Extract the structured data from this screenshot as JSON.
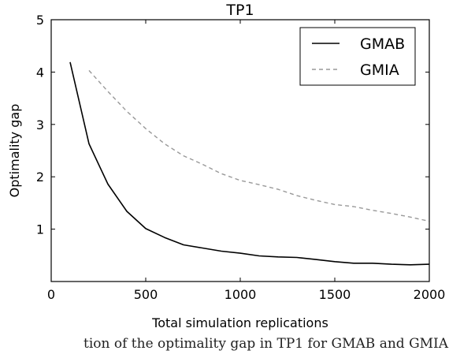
{
  "chart_data": {
    "type": "line",
    "title": "TP1",
    "xlabel": "Total simulation replications",
    "ylabel": "Optimality gap",
    "xlim": [
      0,
      2000
    ],
    "ylim": [
      0,
      5
    ],
    "xticks": [
      0,
      500,
      1000,
      1500,
      2000
    ],
    "yticks": [
      1,
      2,
      3,
      4,
      5
    ],
    "grid": false,
    "legend": "top-right",
    "series": [
      {
        "name": "GMAB",
        "style": "solid",
        "color": "#000000",
        "x": [
          100,
          200,
          300,
          400,
          500,
          600,
          700,
          800,
          900,
          1000,
          1100,
          1200,
          1300,
          1400,
          1500,
          1600,
          1700,
          1800,
          1900,
          2000
        ],
        "y": [
          4.19,
          2.63,
          1.86,
          1.34,
          1.01,
          0.84,
          0.7,
          0.64,
          0.58,
          0.54,
          0.49,
          0.47,
          0.46,
          0.42,
          0.38,
          0.35,
          0.35,
          0.33,
          0.32,
          0.33
        ]
      },
      {
        "name": "GMIA",
        "style": "dashed",
        "color": "#999999",
        "x": [
          200,
          300,
          400,
          500,
          600,
          700,
          800,
          900,
          1000,
          1100,
          1200,
          1300,
          1400,
          1500,
          1600,
          1700,
          1800,
          1900,
          2000
        ],
        "y": [
          4.03,
          3.63,
          3.25,
          2.92,
          2.63,
          2.4,
          2.24,
          2.06,
          1.93,
          1.85,
          1.76,
          1.64,
          1.55,
          1.47,
          1.43,
          1.36,
          1.3,
          1.23,
          1.15
        ]
      }
    ]
  },
  "caption": "tion of the optimality gap in TP1 for GMAB and GMIA ..."
}
